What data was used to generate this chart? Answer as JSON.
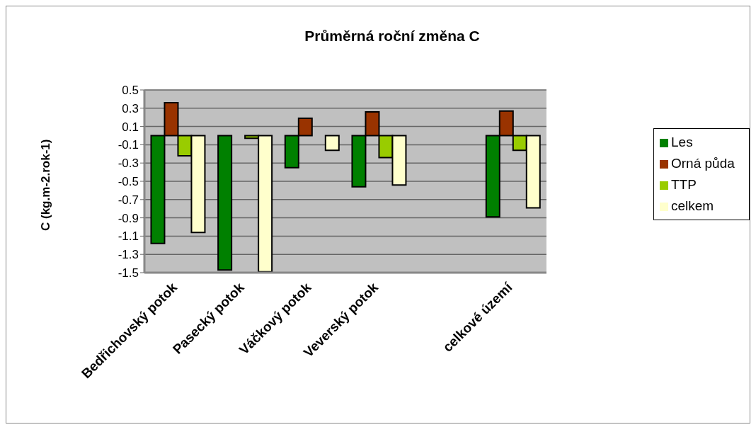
{
  "chart_data": {
    "type": "bar",
    "title": "Průměrná roční změna C",
    "ylabel": "C (kg.m-2.rok-1)",
    "categories": [
      "Bedřichovský potok",
      "Pasecký potok",
      "Váčkový potok",
      "Veverský potok",
      null,
      "celkové území"
    ],
    "series": [
      {
        "name": "Les",
        "color": "#008000",
        "values": [
          -1.18,
          -1.47,
          -0.35,
          -0.56,
          null,
          -0.89
        ]
      },
      {
        "name": "Orná půda",
        "color": "#993300",
        "values": [
          0.36,
          null,
          0.19,
          0.26,
          null,
          0.27
        ]
      },
      {
        "name": "TTP",
        "color": "#99cc00",
        "values": [
          -0.22,
          -0.03,
          null,
          -0.24,
          null,
          -0.16
        ]
      },
      {
        "name": "celkem",
        "color": "#ffffcc",
        "values": [
          -1.06,
          -1.49,
          -0.16,
          -0.54,
          null,
          -0.79
        ]
      }
    ],
    "ylim": [
      -1.5,
      0.5
    ],
    "yticks": [
      0.5,
      0.3,
      0.1,
      -0.1,
      -0.3,
      -0.5,
      -0.7,
      -0.9,
      -1.1,
      -1.3,
      -1.5
    ],
    "grid": "y",
    "legend": "right"
  }
}
